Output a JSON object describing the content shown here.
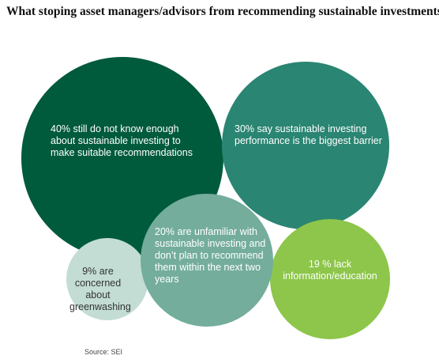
{
  "chart_data": {
    "type": "bubble",
    "title": "What stoping asset managers/advisors from recommending sustainable investments",
    "source": "Source: SEI",
    "bubbles": [
      {
        "label": "40% still do not know enough about sustainable investing to make suitable recommendations",
        "value": 40,
        "color": "#005a3c",
        "text_color": "#ffffff"
      },
      {
        "label": "30% say sustainable investing performance is the biggest barrier",
        "value": 30,
        "color": "#2a8572",
        "text_color": "#ffffff"
      },
      {
        "label": "20% are unfamiliar with sustainable investing and don’t plan to recommend them within the next two years",
        "value": 20,
        "color": "#74ad9c",
        "text_color": "#ffffff"
      },
      {
        "label": "9% are concerned about greenwashing",
        "value": 9,
        "color": "#c3ddd4",
        "text_color": "#333333"
      },
      {
        "label": "19 % lack information/education",
        "value": 19,
        "color": "#8dc64a",
        "text_color": "#ffffff"
      }
    ]
  }
}
